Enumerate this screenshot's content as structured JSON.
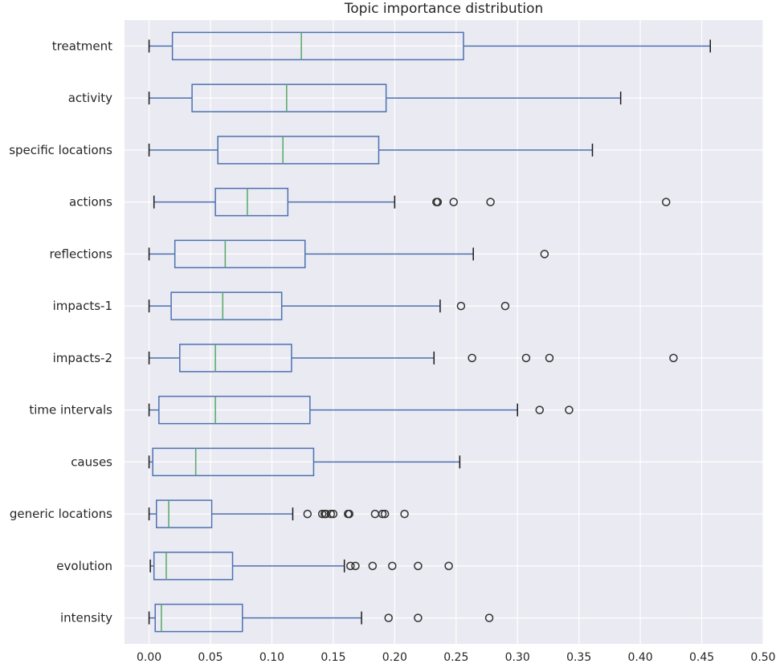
{
  "chart_data": {
    "type": "boxplot",
    "orientation": "horizontal",
    "title": "Topic importance distribution",
    "xlabel": "",
    "ylabel": "",
    "xlim": [
      -0.02,
      0.5
    ],
    "xticks": [
      0.0,
      0.05,
      0.1,
      0.15,
      0.2,
      0.25,
      0.3,
      0.35,
      0.4,
      0.45,
      0.5
    ],
    "xtick_labels": [
      "0.00",
      "0.05",
      "0.10",
      "0.15",
      "0.20",
      "0.25",
      "0.30",
      "0.35",
      "0.40",
      "0.45",
      "0.50"
    ],
    "grid": true,
    "colors": {
      "background": "#eaeaf2",
      "box": "#4c72b0",
      "median": "#55a868",
      "cap": "#1a1a1a",
      "flier": "#333333"
    },
    "categories": [
      "treatment",
      "activity",
      "specific locations",
      "actions",
      "reflections",
      "impacts-1",
      "impacts-2",
      "time intervals",
      "causes",
      "generic locations",
      "evolution",
      "intensity"
    ],
    "boxes": [
      {
        "label": "treatment",
        "whislo": 0.0,
        "q1": 0.019,
        "med": 0.124,
        "q3": 0.256,
        "whishi": 0.457,
        "fliers": []
      },
      {
        "label": "activity",
        "whislo": 0.0,
        "q1": 0.035,
        "med": 0.112,
        "q3": 0.193,
        "whishi": 0.384,
        "fliers": []
      },
      {
        "label": "specific locations",
        "whislo": 0.0,
        "q1": 0.056,
        "med": 0.109,
        "q3": 0.187,
        "whishi": 0.361,
        "fliers": []
      },
      {
        "label": "actions",
        "whislo": 0.004,
        "q1": 0.054,
        "med": 0.08,
        "q3": 0.113,
        "whishi": 0.2,
        "fliers": [
          0.234,
          0.235,
          0.248,
          0.278,
          0.421
        ]
      },
      {
        "label": "reflections",
        "whislo": 0.0,
        "q1": 0.021,
        "med": 0.062,
        "q3": 0.127,
        "whishi": 0.264,
        "fliers": [
          0.322
        ]
      },
      {
        "label": "impacts-1",
        "whislo": 0.0,
        "q1": 0.018,
        "med": 0.06,
        "q3": 0.108,
        "whishi": 0.237,
        "fliers": [
          0.254,
          0.29
        ]
      },
      {
        "label": "impacts-2",
        "whislo": 0.0,
        "q1": 0.025,
        "med": 0.054,
        "q3": 0.116,
        "whishi": 0.232,
        "fliers": [
          0.263,
          0.307,
          0.326,
          0.427
        ]
      },
      {
        "label": "time intervals",
        "whislo": 0.0,
        "q1": 0.008,
        "med": 0.054,
        "q3": 0.131,
        "whishi": 0.3,
        "fliers": [
          0.318,
          0.342
        ]
      },
      {
        "label": "causes",
        "whislo": 0.0,
        "q1": 0.003,
        "med": 0.038,
        "q3": 0.134,
        "whishi": 0.253,
        "fliers": []
      },
      {
        "label": "generic locations",
        "whislo": 0.0,
        "q1": 0.006,
        "med": 0.016,
        "q3": 0.051,
        "whishi": 0.117,
        "fliers": [
          0.129,
          0.141,
          0.143,
          0.144,
          0.148,
          0.15,
          0.162,
          0.163,
          0.184,
          0.19,
          0.192,
          0.208
        ]
      },
      {
        "label": "evolution",
        "whislo": 0.001,
        "q1": 0.004,
        "med": 0.014,
        "q3": 0.068,
        "whishi": 0.159,
        "fliers": [
          0.164,
          0.168,
          0.182,
          0.198,
          0.219,
          0.244
        ]
      },
      {
        "label": "intensity",
        "whislo": 0.0,
        "q1": 0.005,
        "med": 0.01,
        "q3": 0.076,
        "whishi": 0.173,
        "fliers": [
          0.195,
          0.219,
          0.277
        ]
      }
    ]
  }
}
